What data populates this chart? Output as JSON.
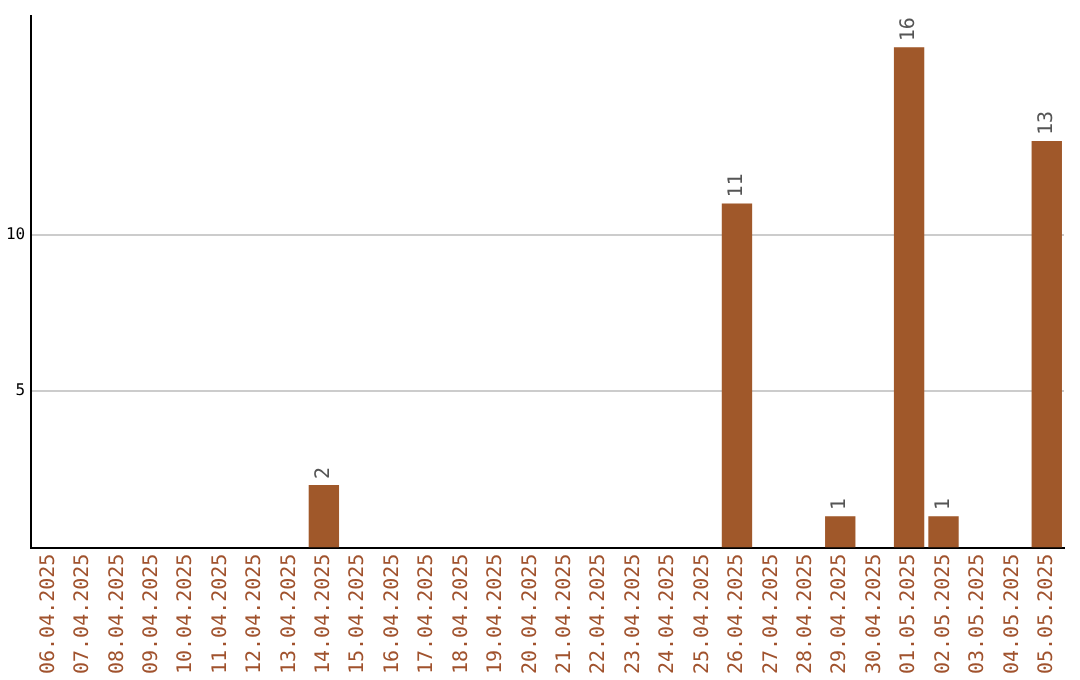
{
  "chart_data": {
    "type": "bar",
    "categories": [
      "06.04.2025",
      "07.04.2025",
      "08.04.2025",
      "09.04.2025",
      "10.04.2025",
      "11.04.2025",
      "12.04.2025",
      "13.04.2025",
      "14.04.2025",
      "15.04.2025",
      "16.04.2025",
      "17.04.2025",
      "18.04.2025",
      "19.04.2025",
      "20.04.2025",
      "21.04.2025",
      "22.04.2025",
      "23.04.2025",
      "24.04.2025",
      "25.04.2025",
      "26.04.2025",
      "27.04.2025",
      "28.04.2025",
      "29.04.2025",
      "30.04.2025",
      "01.05.2025",
      "02.05.2025",
      "03.05.2025",
      "04.05.2025",
      "05.05.2025"
    ],
    "values": [
      0,
      0,
      0,
      0,
      0,
      0,
      0,
      0,
      2,
      0,
      0,
      0,
      0,
      0,
      0,
      0,
      0,
      0,
      0,
      0,
      11,
      0,
      0,
      1,
      0,
      16,
      1,
      0,
      0,
      13
    ],
    "value_labels": [
      null,
      null,
      null,
      null,
      null,
      null,
      null,
      null,
      "2",
      null,
      null,
      null,
      null,
      null,
      null,
      null,
      null,
      null,
      null,
      null,
      "11",
      null,
      null,
      "1",
      null,
      "16",
      "1",
      null,
      null,
      "13"
    ],
    "color": "#a0582a",
    "ylim": [
      0,
      17
    ],
    "yticks": [
      5,
      10
    ],
    "grid": "y",
    "legend": false
  }
}
